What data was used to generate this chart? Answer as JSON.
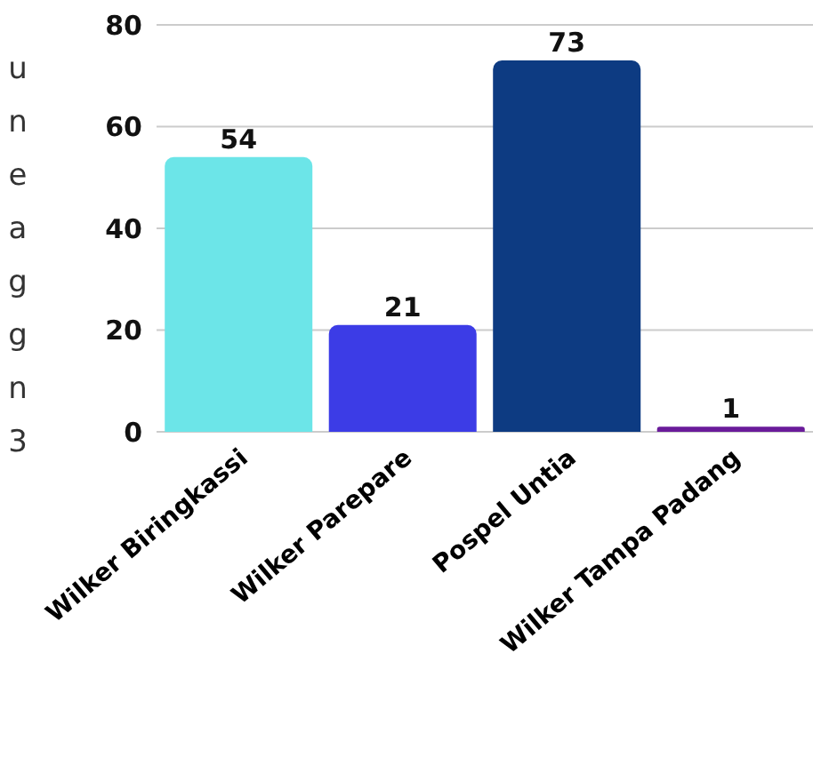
{
  "chart_data": {
    "type": "bar",
    "ylabel": "uneaggn3",
    "categories": [
      "Wilker Biringkassi",
      "Wilker Parepare",
      "Pospel Untia",
      "Wilker Tampa Padang"
    ],
    "values": [
      54,
      21,
      73,
      1
    ],
    "colors": [
      "#6ce5e8",
      "#3c3ce6",
      "#0d3b82",
      "#6a1b9a"
    ],
    "ylim": [
      0,
      80
    ],
    "yticks": [
      0,
      20,
      40,
      60,
      80
    ],
    "grid": "y",
    "data_labels": true
  }
}
